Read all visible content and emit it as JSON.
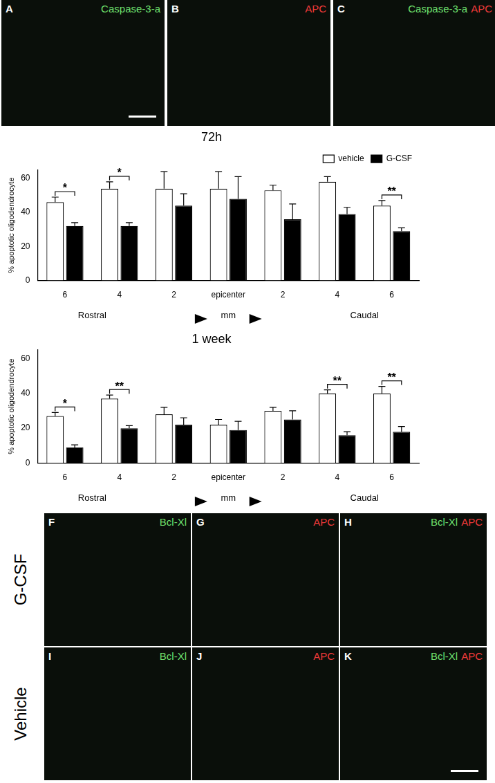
{
  "chart_data": [
    {
      "type": "bar",
      "title": "72h",
      "y_label": "% apoptotic oligodendrocyte",
      "x_label": "mm",
      "x_side_labels": [
        "Rostral",
        "Caudal"
      ],
      "categories": [
        "6",
        "4",
        "2",
        "epicenter",
        "2",
        "4",
        "6"
      ],
      "series": [
        {
          "name": "vehicle",
          "color": "#ffffff",
          "values": [
            46,
            54,
            54,
            54,
            53,
            58,
            44
          ],
          "errors": [
            3,
            4,
            10,
            10,
            3,
            3,
            3
          ]
        },
        {
          "name": "G-CSF",
          "color": "#000000",
          "values": [
            32,
            32,
            44,
            48,
            36,
            39,
            29
          ],
          "errors": [
            2,
            2,
            7,
            13,
            9,
            4,
            2
          ]
        }
      ],
      "ylim": [
        0,
        65
      ],
      "yticks": [
        0,
        20,
        40,
        60
      ],
      "grid": false,
      "legend": "top right",
      "annotations": [
        {
          "category": 0,
          "text": "*"
        },
        {
          "category": 1,
          "text": "*"
        },
        {
          "category": 6,
          "text": "**"
        }
      ]
    },
    {
      "type": "bar",
      "title": "1 week",
      "y_label": "% apoptotic oligodendrocyte",
      "x_label": "mm",
      "x_side_labels": [
        "Rostral",
        "Caudal"
      ],
      "categories": [
        "6",
        "4",
        "2",
        "epicenter",
        "2",
        "4",
        "6"
      ],
      "series": [
        {
          "name": "vehicle",
          "color": "#ffffff",
          "values": [
            27,
            37,
            28,
            22,
            30,
            40,
            40
          ],
          "errors": [
            2,
            2,
            4,
            3,
            2,
            2,
            4
          ]
        },
        {
          "name": "G-CSF",
          "color": "#000000",
          "values": [
            9,
            20,
            22,
            19,
            25,
            16,
            18
          ],
          "errors": [
            1.5,
            1.5,
            4,
            5,
            5,
            2,
            3
          ]
        }
      ],
      "ylim": [
        0,
        65
      ],
      "yticks": [
        0,
        20,
        40,
        60
      ],
      "grid": false,
      "annotations": [
        {
          "category": 0,
          "text": "*"
        },
        {
          "category": 1,
          "text": "**"
        },
        {
          "category": 5,
          "text": "**"
        },
        {
          "category": 6,
          "text": "**"
        }
      ]
    }
  ],
  "panels": [
    {
      "letter": "A",
      "labels": [
        {
          "text": "Caspase-3-a",
          "color": "#6ee06e"
        }
      ]
    },
    {
      "letter": "B",
      "labels": [
        {
          "text": "APC",
          "color": "#f03a3a"
        }
      ]
    },
    {
      "letter": "C",
      "labels": [
        {
          "text": "Caspase-3-a",
          "color": "#6ee06e"
        },
        {
          "text": "APC",
          "color": "#f03a3a"
        }
      ]
    }
  ],
  "panel_rows": [
    {
      "label": "G-CSF",
      "panels": [
        {
          "letter": "F",
          "labels": [
            {
              "text": "Bcl-Xl",
              "color": "#6ee06e"
            }
          ]
        },
        {
          "letter": "G",
          "labels": [
            {
              "text": "APC",
              "color": "#f03a3a"
            }
          ]
        },
        {
          "letter": "H",
          "labels": [
            {
              "text": "Bcl-Xl",
              "color": "#6ee06e"
            },
            {
              "text": "APC",
              "color": "#f03a3a"
            }
          ]
        }
      ]
    },
    {
      "label": "Vehicle",
      "panels": [
        {
          "letter": "I",
          "labels": [
            {
              "text": "Bcl-Xl",
              "color": "#6ee06e"
            }
          ]
        },
        {
          "letter": "J",
          "labels": [
            {
              "text": "APC",
              "color": "#f03a3a"
            }
          ]
        },
        {
          "letter": "K",
          "labels": [
            {
              "text": "Bcl-Xl",
              "color": "#6ee06e"
            },
            {
              "text": "APC",
              "color": "#f03a3a"
            }
          ]
        }
      ]
    }
  ]
}
